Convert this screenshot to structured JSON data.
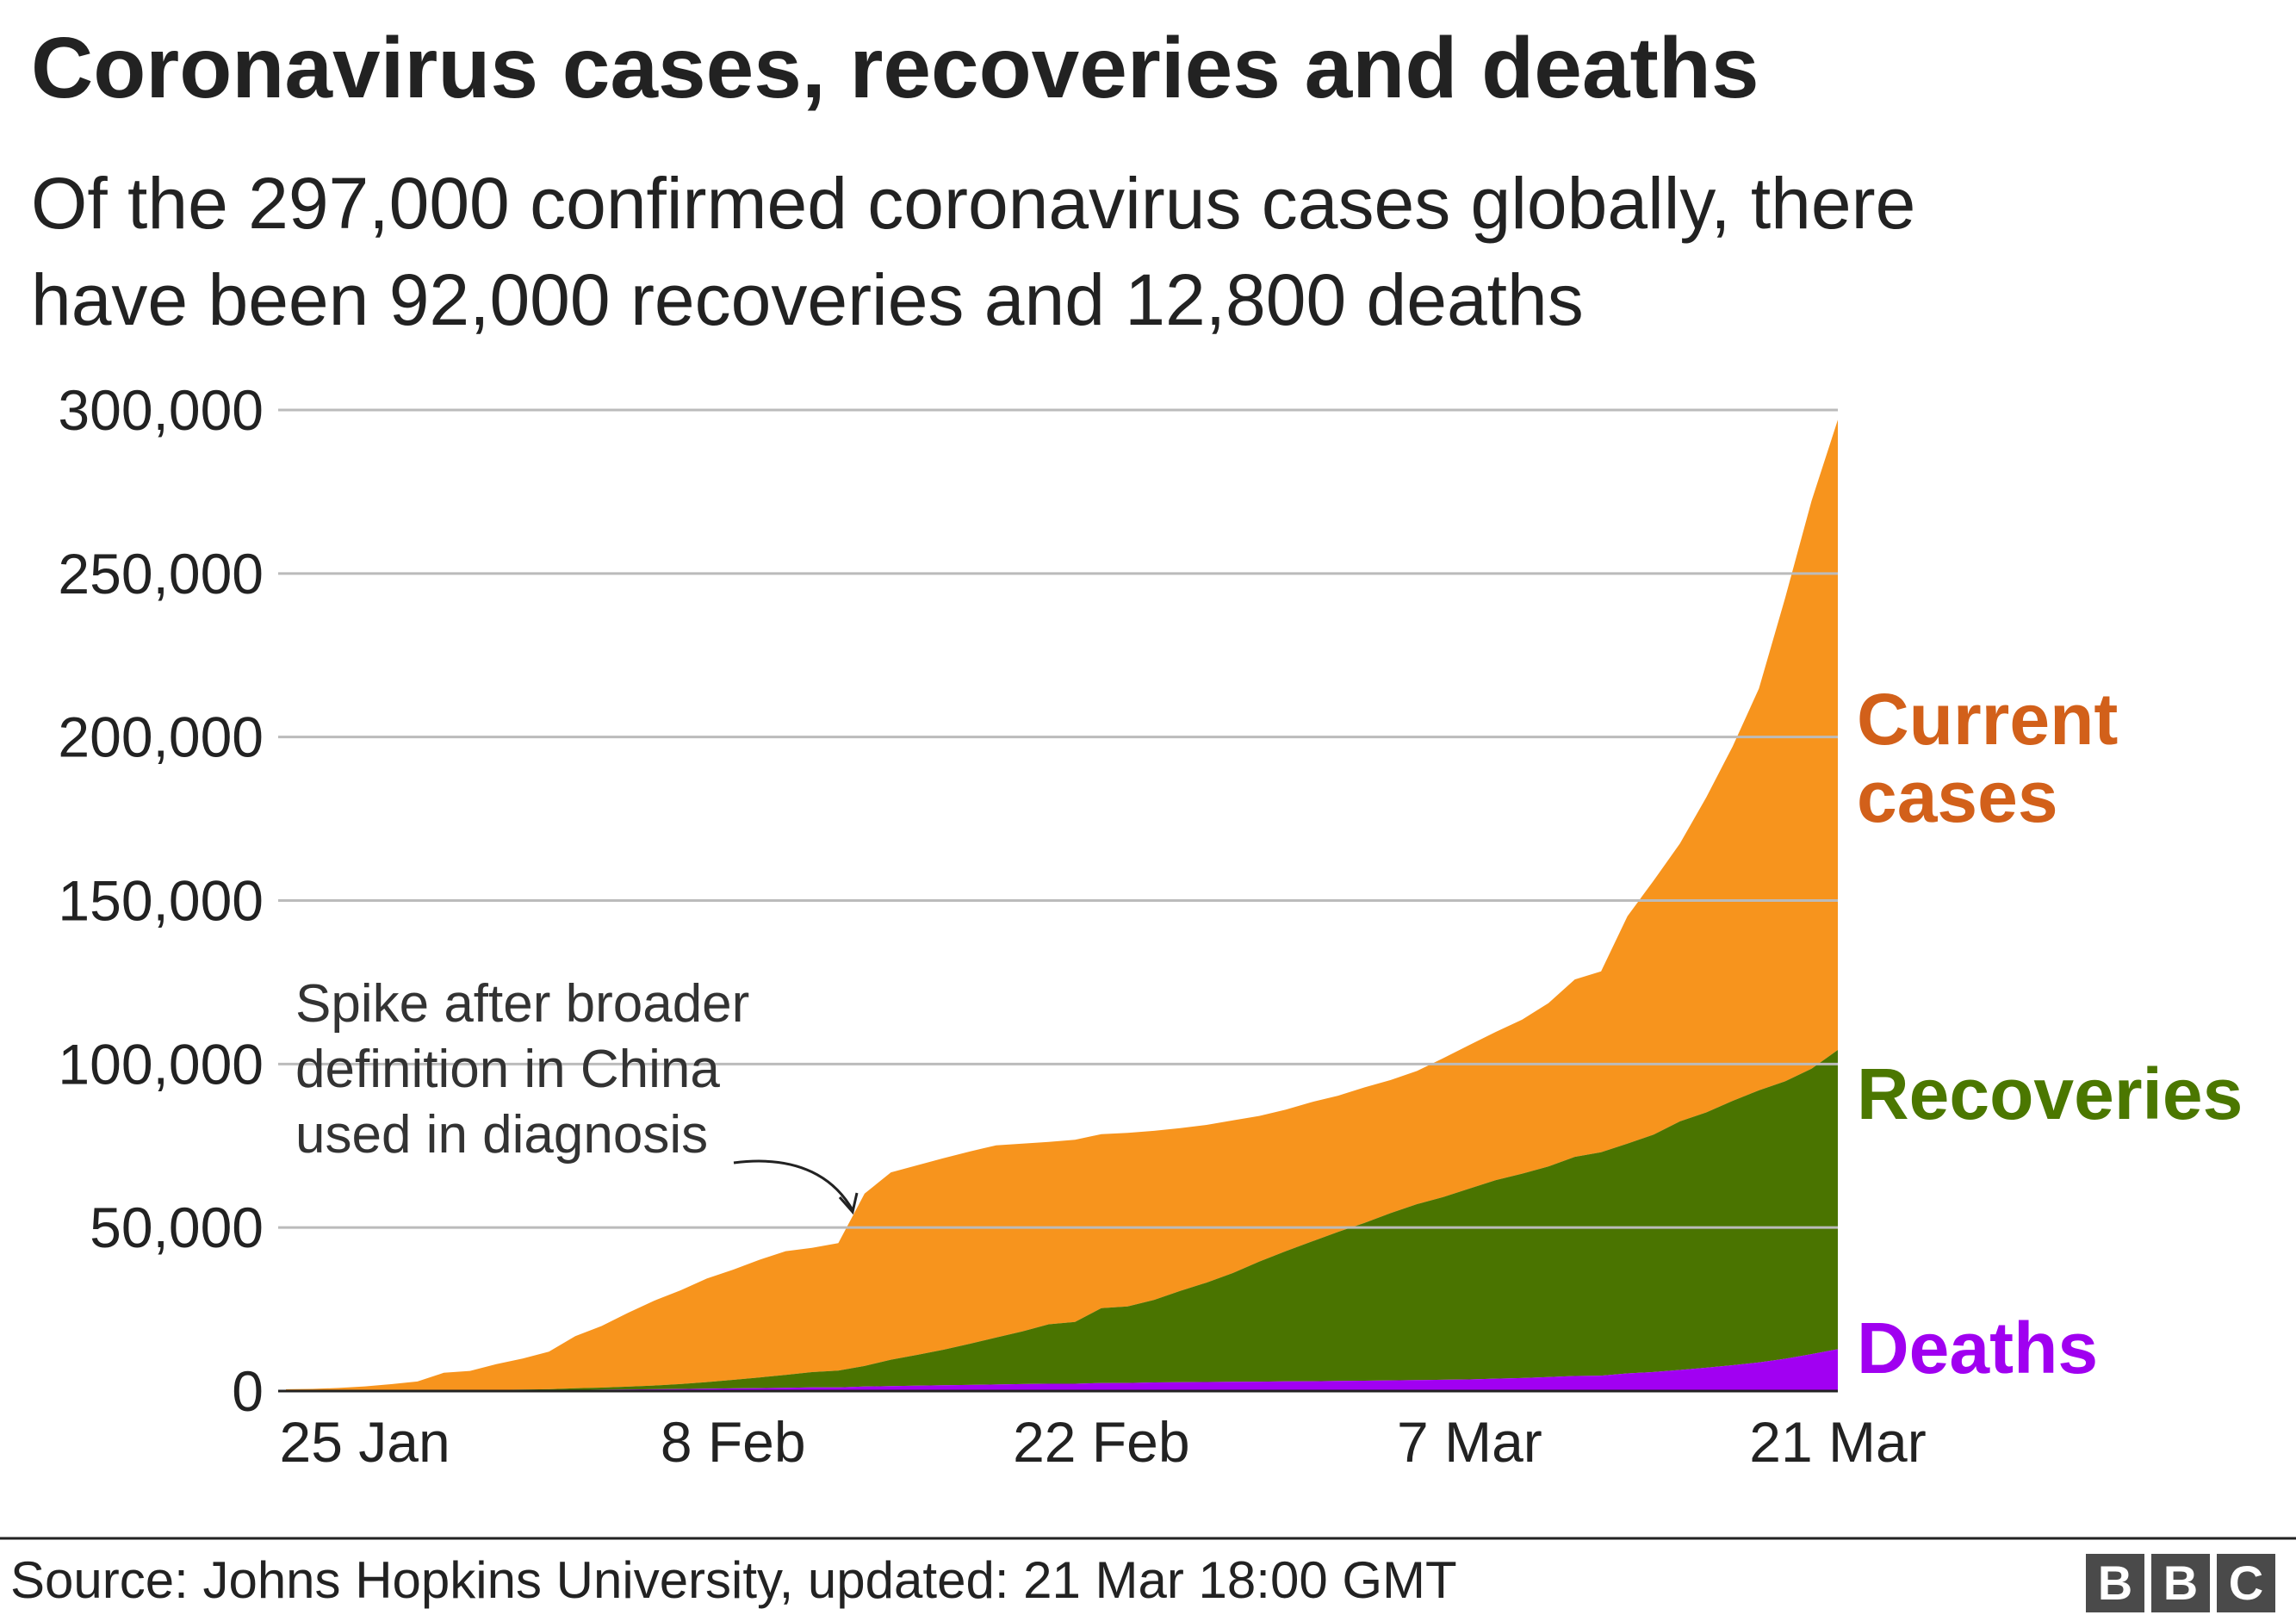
{
  "chart_data": {
    "type": "stacked-area",
    "title": "Coronavirus cases, recoveries and deaths",
    "subtitle": "Of the 297,000 confirmed coronavirus cases globally, there have been 92,000 recoveries and 12,800 deaths",
    "annotation": "Spike after broader definition in China used in diagnosis",
    "source": "Source: Johns Hopkins University, updated: 21 Mar 18:00 GMT",
    "logo": [
      "B",
      "B",
      "C"
    ],
    "categories": [
      null,
      null,
      null,
      "25 Jan",
      null,
      null,
      null,
      null,
      null,
      null,
      null,
      null,
      null,
      null,
      null,
      null,
      null,
      "8 Feb",
      null,
      null,
      null,
      null,
      null,
      null,
      null,
      null,
      null,
      null,
      null,
      null,
      null,
      "22 Feb",
      null,
      null,
      null,
      null,
      null,
      null,
      null,
      null,
      null,
      null,
      null,
      null,
      null,
      "7 Mar",
      null,
      null,
      null,
      null,
      null,
      null,
      null,
      null,
      null,
      null,
      null,
      null,
      null,
      "21 Mar"
    ],
    "series": [
      {
        "name": "Deaths",
        "color": "#a100f2",
        "label_color": "#a000f0",
        "values": [
          17,
          18,
          26,
          42,
          56,
          82,
          131,
          133,
          171,
          213,
          259,
          362,
          426,
          492,
          564,
          634,
          719,
          806,
          906,
          1013,
          1113,
          1118,
          1371,
          1523,
          1666,
          1770,
          1868,
          2007,
          2122,
          2247,
          2251,
          2458,
          2469,
          2629,
          2708,
          2770,
          2814,
          2872,
          2941,
          2996,
          3085,
          3160,
          3254,
          3348,
          3460,
          3558,
          3802,
          3988,
          4262,
          4615,
          4720,
          5404,
          5819,
          6440,
          7126,
          7905,
          8733,
          9867,
          11299,
          12800
        ]
      },
      {
        "name": "Recoveries",
        "color": "#4a7400",
        "label_color": "#4b7700",
        "values": [
          28,
          30,
          36,
          39,
          52,
          61,
          107,
          126,
          143,
          222,
          284,
          472,
          623,
          852,
          1124,
          1487,
          2011,
          2616,
          3244,
          3946,
          4683,
          5150,
          6295,
          8058,
          9395,
          10865,
          12583,
          14352,
          16121,
          18177,
          18890,
          22886,
          23394,
          25227,
          27905,
          30384,
          33277,
          36711,
          39782,
          42716,
          45602,
          48228,
          51170,
          53796,
          55865,
          58358,
          60694,
          62494,
          64404,
          67003,
          68324,
          70251,
          72624,
          76034,
          78088,
          80840,
          83207,
          84854,
          87256,
          91500
        ]
      },
      {
        "name": "Current cases",
        "color": "#f7941d",
        "label_color": "#d2601a",
        "values": [
          510,
          606,
          879,
          1353,
          2010,
          2784,
          5340,
          5907,
          7920,
          9492,
          11495,
          15953,
          18832,
          22548,
          25947,
          28673,
          31661,
          33698,
          36000,
          37803,
          38006,
          38953,
          52702,
          57304,
          57969,
          58589,
          58807,
          58777,
          57396,
          55773,
          55682,
          53235,
          53102,
          51712,
          49800,
          48241,
          46663,
          44537,
          43288,
          42657,
          41619,
          41452,
          40696,
          40742,
          42476,
          43931,
          45325,
          47108,
          49954,
          54257,
          55308,
          69550,
          77658,
          84980,
          96360,
          108357,
          122881,
          147849,
          173653,
          192700
        ]
      }
    ],
    "ylim": [
      0,
      300000
    ],
    "yticks": [
      0,
      {
        "value": 50000,
        "label": "50,000"
      },
      {
        "value": 100000,
        "label": "100,000"
      },
      {
        "value": 150000,
        "label": "150,000"
      },
      {
        "value": 200000,
        "label": "200,000"
      },
      {
        "value": 250000,
        "label": "250,000"
      },
      {
        "value": 300000,
        "label": "300,000"
      }
    ],
    "grid": true
  }
}
